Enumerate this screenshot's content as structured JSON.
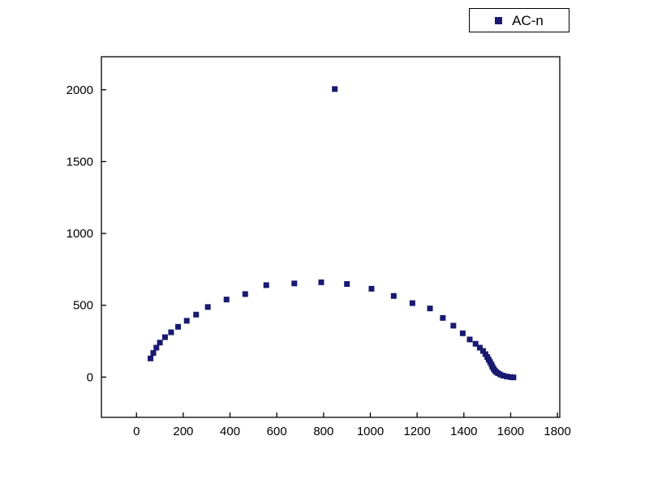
{
  "chart_data": {
    "type": "scatter",
    "title": "",
    "xlabel": "",
    "ylabel": "",
    "xlim": [
      -150,
      1810
    ],
    "ylim": [
      -280,
      2230
    ],
    "x_ticks": [
      0,
      200,
      400,
      600,
      800,
      1000,
      1200,
      1400,
      1600,
      1800
    ],
    "y_ticks": [
      0,
      500,
      1000,
      1500,
      2000
    ],
    "grid": false,
    "legend_position": "top-right-outside",
    "marker": {
      "shape": "square",
      "size": 7,
      "color": "#191970"
    },
    "series": [
      {
        "name": "AC-n",
        "color": "#191970",
        "points": [
          [
            60,
            130
          ],
          [
            72,
            168
          ],
          [
            85,
            205
          ],
          [
            100,
            240
          ],
          [
            122,
            278
          ],
          [
            148,
            312
          ],
          [
            178,
            350
          ],
          [
            215,
            392
          ],
          [
            255,
            435
          ],
          [
            305,
            488
          ],
          [
            385,
            540
          ],
          [
            465,
            578
          ],
          [
            555,
            640
          ],
          [
            675,
            652
          ],
          [
            790,
            660
          ],
          [
            900,
            648
          ],
          [
            1005,
            615
          ],
          [
            1100,
            565
          ],
          [
            1180,
            515
          ],
          [
            1255,
            478
          ],
          [
            1310,
            412
          ],
          [
            1355,
            358
          ],
          [
            1395,
            305
          ],
          [
            1425,
            262
          ],
          [
            1450,
            232
          ],
          [
            1468,
            205
          ],
          [
            1482,
            182
          ],
          [
            1492,
            160
          ],
          [
            1500,
            140
          ],
          [
            1506,
            122
          ],
          [
            1512,
            105
          ],
          [
            1518,
            88
          ],
          [
            1522,
            72
          ],
          [
            1527,
            58
          ],
          [
            1532,
            46
          ],
          [
            1538,
            36
          ],
          [
            1546,
            27
          ],
          [
            1556,
            18
          ],
          [
            1568,
            10
          ],
          [
            1584,
            4
          ],
          [
            1600,
            0
          ],
          [
            1612,
            -2
          ],
          [
            848,
            2005
          ]
        ]
      }
    ]
  },
  "legend": {
    "entries": [
      {
        "label": "AC-n",
        "marker_color": "#191970"
      }
    ]
  },
  "axis": {
    "frame_color": "#000000",
    "tick_label_color": "#000000"
  }
}
